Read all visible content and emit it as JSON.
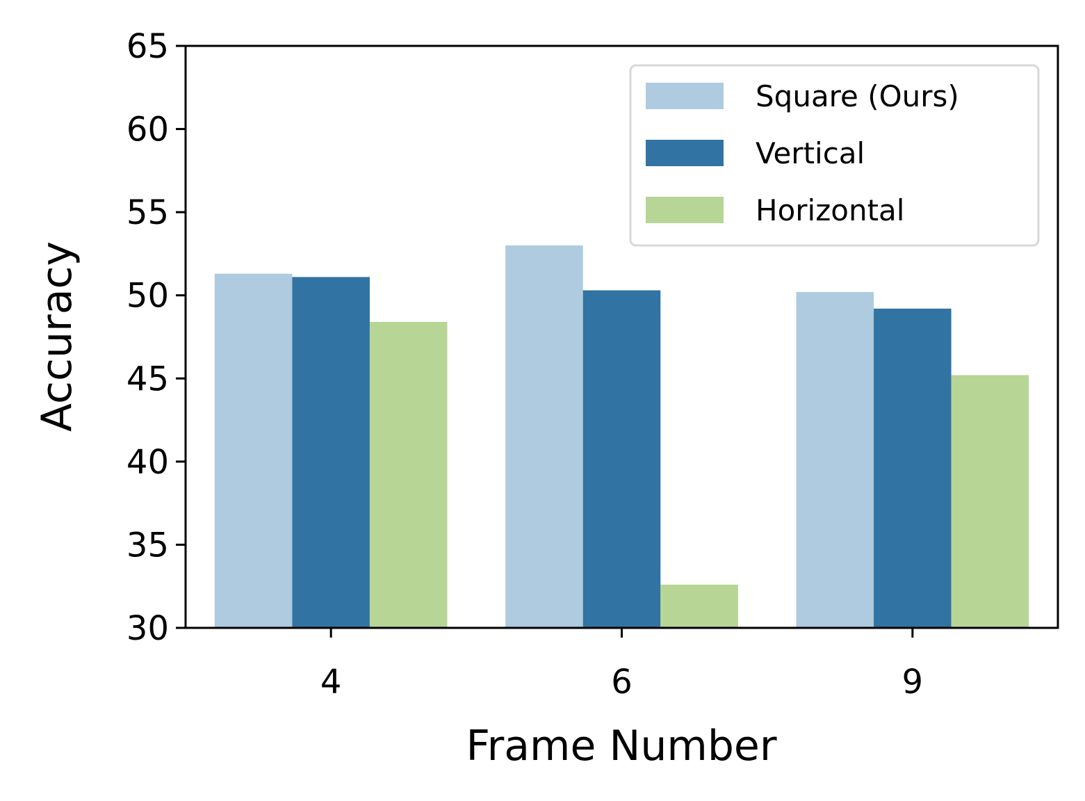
{
  "chart_data": {
    "type": "bar",
    "title": "",
    "xlabel": "Frame Number",
    "ylabel": "Accuracy",
    "categories": [
      "4",
      "6",
      "9"
    ],
    "ylim": [
      30,
      65
    ],
    "yticks": [
      "30",
      "35",
      "40",
      "45",
      "50",
      "55",
      "60",
      "65"
    ],
    "grid": false,
    "legend_position": "top-right",
    "series": [
      {
        "name": "Square (Ours)",
        "color": "#aecbdf",
        "values": [
          51.3,
          53.0,
          50.2
        ]
      },
      {
        "name": "Vertical",
        "color": "#3173a2",
        "values": [
          51.1,
          50.3,
          49.2
        ]
      },
      {
        "name": "Horizontal",
        "color": "#b7d595",
        "values": [
          48.4,
          32.6,
          45.2
        ]
      }
    ]
  }
}
